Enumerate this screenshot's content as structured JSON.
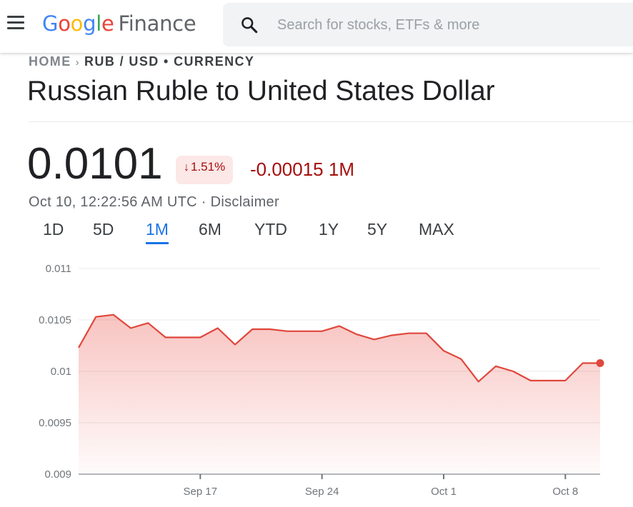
{
  "header": {
    "logo_letters": [
      "G",
      "o",
      "o",
      "g",
      "l",
      "e"
    ],
    "logo_product": "Finance",
    "search_placeholder": "Search for stocks, ETFs & more",
    "menu_icon": "hamburger-menu-icon",
    "search_icon": "search-icon"
  },
  "breadcrumb": {
    "home": "HOME",
    "separator": "›",
    "current": "RUB / USD • CURRENCY"
  },
  "title": "Russian Ruble to United States Dollar",
  "quote": {
    "price": "0.0101",
    "change_percent": "1.51%",
    "change_direction": "down",
    "change_abs": "-0.00015 1M",
    "timestamp": "Oct 10, 12:22:56 AM UTC",
    "timestamp_sep": " · ",
    "disclaimer": "Disclaimer"
  },
  "ranges": {
    "tabs": [
      "1D",
      "5D",
      "1M",
      "6M",
      "YTD",
      "1Y",
      "5Y",
      "MAX"
    ],
    "active": "1M"
  },
  "colors": {
    "negative": "#a50e0e",
    "line": "#e0473c",
    "accent": "#1a73e8"
  },
  "chart_data": {
    "type": "area",
    "ylim": [
      0.009,
      0.011
    ],
    "yticks": [
      0.011,
      0.0105,
      0.01,
      0.0095,
      0.009
    ],
    "ytick_labels": [
      "0.011",
      "0.0105",
      "0.01",
      "0.0095",
      "0.009"
    ],
    "x_start": "2023-09-10",
    "x_end": "2023-10-10",
    "xtick_dates": [
      "2023-09-17",
      "2023-09-24",
      "2023-10-01",
      "2023-10-08"
    ],
    "xtick_labels": [
      "Sep 17",
      "Sep 24",
      "Oct 1",
      "Oct 8"
    ],
    "grid": true,
    "series": [
      {
        "x": [
          "2023-09-10",
          "2023-09-11",
          "2023-09-12",
          "2023-09-13",
          "2023-09-14",
          "2023-09-15",
          "2023-09-16",
          "2023-09-17",
          "2023-09-18",
          "2023-09-19",
          "2023-09-20",
          "2023-09-21",
          "2023-09-22",
          "2023-09-23",
          "2023-09-24",
          "2023-09-25",
          "2023-09-26",
          "2023-09-27",
          "2023-09-28",
          "2023-09-29",
          "2023-09-30",
          "2023-10-01",
          "2023-10-02",
          "2023-10-03",
          "2023-10-04",
          "2023-10-05",
          "2023-10-06",
          "2023-10-07",
          "2023-10-08",
          "2023-10-09",
          "2023-10-10"
        ],
        "values": [
          0.01023,
          0.01053,
          0.01055,
          0.01042,
          0.01047,
          0.01033,
          0.01033,
          0.01033,
          0.01042,
          0.01026,
          0.01041,
          0.01041,
          0.01039,
          0.01039,
          0.01039,
          0.01044,
          0.01036,
          0.01031,
          0.01035,
          0.01037,
          0.01037,
          0.0102,
          0.01012,
          0.0099,
          0.01005,
          0.01,
          0.00991,
          0.00991,
          0.00991,
          0.01008,
          0.01008
        ]
      }
    ]
  }
}
